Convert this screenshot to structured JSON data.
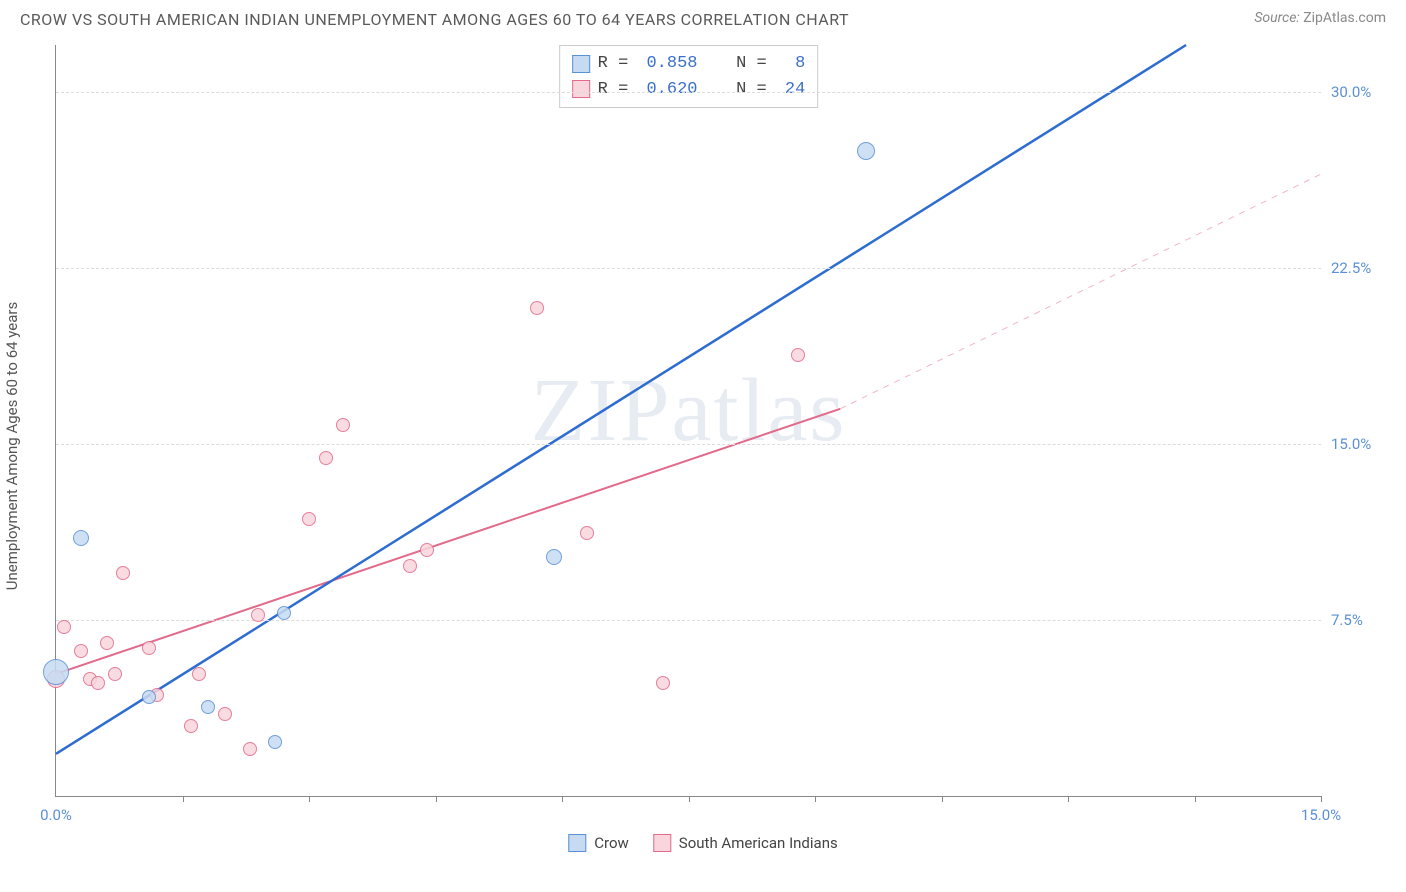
{
  "header": {
    "title": "CROW VS SOUTH AMERICAN INDIAN UNEMPLOYMENT AMONG AGES 60 TO 64 YEARS CORRELATION CHART",
    "source_prefix": "Source: ",
    "source": "ZipAtlas.com"
  },
  "ylabel": "Unemployment Among Ages 60 to 64 years",
  "watermark": "ZIPatlas",
  "axes": {
    "xlim": [
      0,
      15
    ],
    "ylim": [
      0,
      32
    ],
    "yticks": [
      {
        "v": 7.5,
        "label": "7.5%"
      },
      {
        "v": 15.0,
        "label": "15.0%"
      },
      {
        "v": 22.5,
        "label": "22.5%"
      },
      {
        "v": 30.0,
        "label": "30.0%"
      }
    ],
    "xticks_minor": [
      1.5,
      3.0,
      4.5,
      6.0,
      7.5,
      9.0,
      10.5,
      12.0,
      13.5,
      15.0
    ],
    "xlabels": [
      {
        "v": 0,
        "label": "0.0%"
      },
      {
        "v": 15,
        "label": "15.0%"
      }
    ]
  },
  "series": {
    "crow": {
      "label": "Crow",
      "fill": "#c6dbf2",
      "stroke": "#5b8fd6",
      "r": 0.858,
      "n": 8,
      "points": [
        {
          "x": 0.0,
          "y": 5.3,
          "s": 26
        },
        {
          "x": 0.3,
          "y": 11.0,
          "s": 16
        },
        {
          "x": 1.1,
          "y": 4.2,
          "s": 14
        },
        {
          "x": 1.8,
          "y": 3.8,
          "s": 14
        },
        {
          "x": 2.6,
          "y": 2.3,
          "s": 14
        },
        {
          "x": 2.7,
          "y": 7.8,
          "s": 14
        },
        {
          "x": 5.9,
          "y": 10.2,
          "s": 16
        },
        {
          "x": 9.6,
          "y": 27.5,
          "s": 18
        }
      ],
      "trend": {
        "x1": 0,
        "y1": 1.8,
        "x2": 13.4,
        "y2": 32.0,
        "width": 2.5,
        "dash": "none"
      }
    },
    "sai": {
      "label": "South American Indians",
      "fill": "#f9d5de",
      "stroke": "#e26a8a",
      "r": 0.62,
      "n": 24,
      "points": [
        {
          "x": 0.0,
          "y": 5.0,
          "s": 18
        },
        {
          "x": 0.1,
          "y": 7.2,
          "s": 14
        },
        {
          "x": 0.3,
          "y": 6.2,
          "s": 14
        },
        {
          "x": 0.4,
          "y": 5.0,
          "s": 14
        },
        {
          "x": 0.5,
          "y": 4.8,
          "s": 14
        },
        {
          "x": 0.6,
          "y": 6.5,
          "s": 14
        },
        {
          "x": 0.7,
          "y": 5.2,
          "s": 14
        },
        {
          "x": 0.8,
          "y": 9.5,
          "s": 14
        },
        {
          "x": 1.1,
          "y": 6.3,
          "s": 14
        },
        {
          "x": 1.2,
          "y": 4.3,
          "s": 14
        },
        {
          "x": 1.6,
          "y": 3.0,
          "s": 14
        },
        {
          "x": 1.7,
          "y": 5.2,
          "s": 14
        },
        {
          "x": 2.0,
          "y": 3.5,
          "s": 14
        },
        {
          "x": 2.3,
          "y": 2.0,
          "s": 14
        },
        {
          "x": 2.4,
          "y": 7.7,
          "s": 14
        },
        {
          "x": 3.0,
          "y": 11.8,
          "s": 14
        },
        {
          "x": 3.2,
          "y": 14.4,
          "s": 14
        },
        {
          "x": 3.4,
          "y": 15.8,
          "s": 14
        },
        {
          "x": 4.2,
          "y": 9.8,
          "s": 14
        },
        {
          "x": 4.4,
          "y": 10.5,
          "s": 14
        },
        {
          "x": 5.7,
          "y": 20.8,
          "s": 14
        },
        {
          "x": 6.3,
          "y": 11.2,
          "s": 14
        },
        {
          "x": 7.2,
          "y": 4.8,
          "s": 14
        },
        {
          "x": 8.8,
          "y": 18.8,
          "s": 14
        }
      ],
      "trend_solid": {
        "x1": 0,
        "y1": 5.2,
        "x2": 9.3,
        "y2": 16.5,
        "width": 2,
        "dash": "none"
      },
      "trend_dash": {
        "x1": 9.3,
        "y1": 16.5,
        "x2": 15.0,
        "y2": 26.5,
        "width": 1,
        "dash": "6,6"
      }
    }
  },
  "legend_top": {
    "rows": [
      {
        "sw_fill": "#c6dbf2",
        "sw_stroke": "#5b8fd6",
        "r_lbl": "R = ",
        "r": "0.858",
        "n_lbl": "   N = ",
        "n": " 8"
      },
      {
        "sw_fill": "#f9d5de",
        "sw_stroke": "#e26a8a",
        "r_lbl": "R = ",
        "r": "0.620",
        "n_lbl": "   N = ",
        "n": "24"
      }
    ]
  },
  "legend_bottom": [
    {
      "sw_fill": "#c6dbf2",
      "sw_stroke": "#5b8fd6",
      "label": "Crow"
    },
    {
      "sw_fill": "#f9d5de",
      "sw_stroke": "#e26a8a",
      "label": "South American Indians"
    }
  ]
}
